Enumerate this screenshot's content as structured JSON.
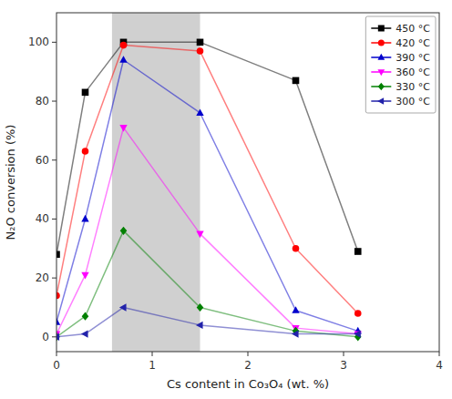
{
  "chart_data": {
    "type": "line",
    "x_label": "Cs content in Co₃O₄ (wt. %)",
    "y_label": "N₂O conversion (%)",
    "x": [
      0,
      0.3,
      0.7,
      1.5,
      2.5,
      3.15
    ],
    "series": [
      {
        "name": "450 °C",
        "color": "#000000",
        "marker": "square",
        "values": [
          28,
          83,
          100,
          100,
          87,
          29
        ]
      },
      {
        "name": "420 °C",
        "color": "#ff0000",
        "marker": "circle",
        "values": [
          14,
          63,
          99,
          97,
          30,
          8
        ]
      },
      {
        "name": "390 °C",
        "color": "#0000cc",
        "marker": "triangle-up",
        "values": [
          5,
          40,
          94,
          76,
          9,
          2
        ]
      },
      {
        "name": "360 °C",
        "color": "#ff00ff",
        "marker": "triangle-down",
        "values": [
          1,
          21,
          71,
          35,
          3,
          1
        ]
      },
      {
        "name": "330 °C",
        "color": "#008000",
        "marker": "diamond",
        "values": [
          0,
          7,
          36,
          10,
          2,
          0
        ]
      },
      {
        "name": "300 °C",
        "color": "#2222aa",
        "marker": "triangle-left",
        "values": [
          0,
          1,
          10,
          4,
          1,
          1
        ]
      }
    ],
    "shaded_region": {
      "x": [
        0.58,
        1.5
      ],
      "color": "#d0d0d0"
    },
    "xlim": [
      0,
      4
    ],
    "xticks": [
      0,
      1,
      2,
      3,
      4
    ],
    "ylim": [
      -5,
      110
    ],
    "yticks": [
      0,
      20,
      40,
      60,
      80,
      100
    ],
    "grid": false,
    "legend": "upper right"
  }
}
